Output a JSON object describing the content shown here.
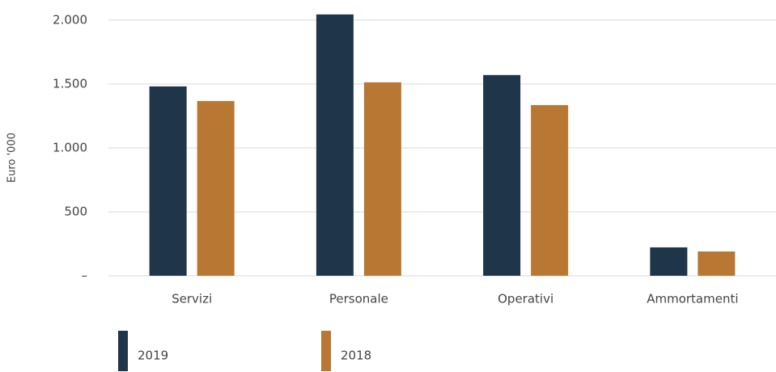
{
  "chart_data": {
    "type": "bar",
    "y_label": "Euro '000",
    "categories": [
      "Servizi",
      "Personale",
      "Operativi",
      "Ammortamenti"
    ],
    "series": [
      {
        "name": "2019",
        "color": "#1f3549",
        "values": [
          1481,
          2044,
          1570,
          222
        ]
      },
      {
        "name": "2018",
        "color": "#b87833",
        "values": [
          1367,
          1513,
          1335,
          190
        ]
      }
    ],
    "ylim": [
      0,
      2100
    ],
    "yticks": [
      {
        "value": 0,
        "label": "–"
      },
      500,
      {
        "value": 1000,
        "label": "1.000"
      },
      {
        "value": 1500,
        "label": "1.500"
      },
      {
        "value": 2000,
        "label": "2.000"
      }
    ],
    "grid": true
  }
}
